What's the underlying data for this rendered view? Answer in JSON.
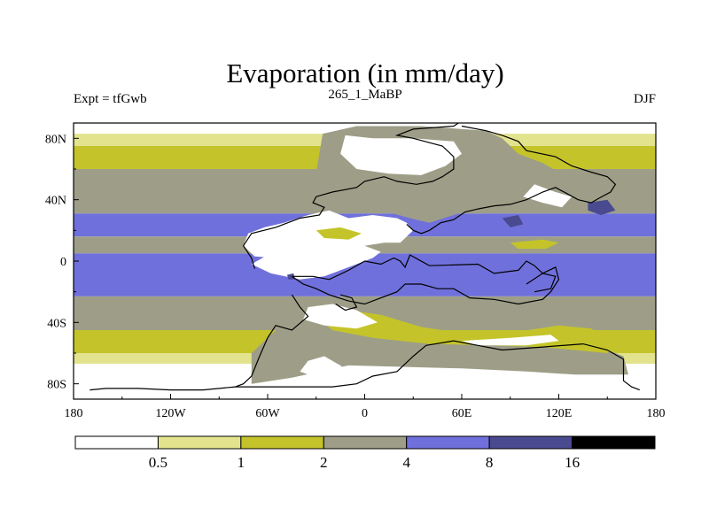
{
  "chart_data": {
    "type": "heatmap",
    "title": "Evaporation (in mm/day)",
    "subtitle_center": "265_1_MaBP",
    "subtitle_left": "Expt = tfGwb",
    "subtitle_right": "DJF",
    "x_ticks": [
      "180",
      "120W",
      "60W",
      "0",
      "60E",
      "120E",
      "180"
    ],
    "x_tick_values": [
      -180,
      -120,
      -60,
      0,
      60,
      120,
      180
    ],
    "y_ticks": [
      "80N",
      "40N",
      "0",
      "40S",
      "80S"
    ],
    "y_tick_values": [
      80,
      40,
      0,
      -40,
      -80
    ],
    "xlim": [
      -180,
      180
    ],
    "ylim": [
      -90,
      90
    ],
    "legend_levels": [
      "0.5",
      "1",
      "2",
      "4",
      "8",
      "16"
    ],
    "legend_level_values": [
      0.5,
      1,
      2,
      4,
      8,
      16
    ],
    "legend_colors": [
      "#ffffff",
      "#e3e38e",
      "#c4c42a",
      "#9e9e88",
      "#7070dc",
      "#4a4a90",
      "#000000"
    ],
    "bands": [
      {
        "lat_from": 90,
        "lat_to": 83,
        "class": 0
      },
      {
        "lat_from": 83,
        "lat_to": 75,
        "class": 1
      },
      {
        "lat_from": 75,
        "lat_to": 60,
        "class": 2
      },
      {
        "lat_from": 60,
        "lat_to": 31,
        "class": 3
      },
      {
        "lat_from": 31,
        "lat_to": 16,
        "class": 4
      },
      {
        "lat_from": 16,
        "lat_to": 5,
        "class": 3
      },
      {
        "lat_from": 5,
        "lat_to": -23,
        "class": 4
      },
      {
        "lat_from": -23,
        "lat_to": -45,
        "class": 3
      },
      {
        "lat_from": -45,
        "lat_to": -60,
        "class": 2
      },
      {
        "lat_from": -60,
        "lat_to": -67,
        "class": 1
      },
      {
        "lat_from": -67,
        "lat_to": -90,
        "class": 0
      }
    ],
    "regions": [
      {
        "class": 3,
        "points": [
          [
            -26,
            83
          ],
          [
            -5,
            88
          ],
          [
            35,
            88
          ],
          [
            75,
            85
          ],
          [
            85,
            80
          ],
          [
            95,
            70
          ],
          [
            110,
            64
          ],
          [
            120,
            58
          ],
          [
            108,
            48
          ],
          [
            85,
            42
          ],
          [
            70,
            36
          ],
          [
            58,
            31
          ],
          [
            40,
            25
          ],
          [
            28,
            28
          ],
          [
            0,
            36
          ],
          [
            -20,
            40
          ],
          [
            -30,
            58
          ]
        ]
      },
      {
        "class": 3,
        "points": [
          [
            -40,
            -38
          ],
          [
            -25,
            -35
          ],
          [
            -10,
            -40
          ],
          [
            15,
            -42
          ],
          [
            30,
            -50
          ],
          [
            70,
            -52
          ],
          [
            110,
            -48
          ],
          [
            135,
            -50
          ],
          [
            150,
            -58
          ],
          [
            160,
            -62
          ],
          [
            163,
            -74
          ],
          [
            130,
            -74
          ],
          [
            100,
            -72
          ],
          [
            60,
            -70
          ],
          [
            -10,
            -68
          ],
          [
            -45,
            -76
          ],
          [
            -70,
            -80
          ],
          [
            -70,
            -60
          ],
          [
            -55,
            -45
          ]
        ]
      },
      {
        "class": 2,
        "points": [
          [
            -30,
            -36
          ],
          [
            -10,
            -32
          ],
          [
            10,
            -35
          ],
          [
            35,
            -43
          ],
          [
            60,
            -47
          ],
          [
            95,
            -46
          ],
          [
            120,
            -42
          ],
          [
            140,
            -44
          ],
          [
            155,
            -55
          ],
          [
            150,
            -60
          ],
          [
            110,
            -56
          ],
          [
            80,
            -55
          ],
          [
            40,
            -54
          ],
          [
            5,
            -50
          ],
          [
            -20,
            -45
          ]
        ]
      },
      {
        "class": 0,
        "points": [
          [
            -12,
            82
          ],
          [
            5,
            80
          ],
          [
            30,
            80
          ],
          [
            55,
            78
          ],
          [
            60,
            70
          ],
          [
            50,
            62
          ],
          [
            35,
            56
          ],
          [
            15,
            57
          ],
          [
            -5,
            60
          ],
          [
            -15,
            70
          ]
        ]
      },
      {
        "class": 0,
        "points": [
          [
            -68,
            3
          ],
          [
            -75,
            10
          ],
          [
            -72,
            18
          ],
          [
            -62,
            22
          ],
          [
            -50,
            25
          ],
          [
            -35,
            30
          ],
          [
            -22,
            33
          ],
          [
            -10,
            28
          ],
          [
            5,
            30
          ],
          [
            20,
            28
          ],
          [
            26,
            25
          ],
          [
            30,
            20
          ],
          [
            22,
            12
          ],
          [
            12,
            12
          ],
          [
            0,
            10
          ],
          [
            -10,
            8
          ],
          [
            -25,
            5
          ],
          [
            -40,
            4
          ],
          [
            -55,
            2
          ]
        ]
      },
      {
        "class": 0,
        "points": [
          [
            -70,
            -2
          ],
          [
            -58,
            -8
          ],
          [
            -40,
            -12
          ],
          [
            -25,
            -10
          ],
          [
            -15,
            -6
          ],
          [
            -5,
            -2
          ],
          [
            5,
            2
          ],
          [
            10,
            6
          ],
          [
            0,
            10
          ],
          [
            -20,
            8
          ],
          [
            -40,
            6
          ],
          [
            -60,
            4
          ]
        ]
      },
      {
        "class": 0,
        "points": [
          [
            -35,
            -30
          ],
          [
            -20,
            -28
          ],
          [
            -5,
            -32
          ],
          [
            8,
            -40
          ],
          [
            -5,
            -44
          ],
          [
            -25,
            -42
          ],
          [
            -38,
            -38
          ]
        ]
      },
      {
        "class": 0,
        "points": [
          [
            60,
            -52
          ],
          [
            90,
            -50
          ],
          [
            115,
            -48
          ],
          [
            120,
            -52
          ],
          [
            100,
            -55
          ],
          [
            70,
            -55
          ]
        ]
      },
      {
        "class": 0,
        "points": [
          [
            -35,
            -65
          ],
          [
            -25,
            -62
          ],
          [
            -15,
            -68
          ],
          [
            -5,
            -78
          ],
          [
            -25,
            -78
          ],
          [
            -40,
            -72
          ]
        ]
      },
      {
        "class": 0,
        "points": [
          [
            105,
            50
          ],
          [
            118,
            45
          ],
          [
            128,
            42
          ],
          [
            122,
            35
          ],
          [
            110,
            38
          ],
          [
            98,
            42
          ]
        ]
      },
      {
        "class": 2,
        "points": [
          [
            -30,
            20
          ],
          [
            -15,
            22
          ],
          [
            -2,
            18
          ],
          [
            -10,
            14
          ],
          [
            -25,
            15
          ]
        ]
      },
      {
        "class": 2,
        "points": [
          [
            90,
            12
          ],
          [
            110,
            14
          ],
          [
            120,
            12
          ],
          [
            112,
            8
          ],
          [
            95,
            8
          ]
        ]
      },
      {
        "class": 5,
        "points": [
          [
            138,
            38
          ],
          [
            150,
            40
          ],
          [
            155,
            33
          ],
          [
            146,
            30
          ],
          [
            138,
            33
          ]
        ]
      },
      {
        "class": 5,
        "points": [
          [
            85,
            28
          ],
          [
            95,
            30
          ],
          [
            98,
            24
          ],
          [
            90,
            22
          ]
        ]
      },
      {
        "class": 5,
        "points": [
          [
            -48,
            -9
          ],
          [
            -44,
            -8
          ],
          [
            -43,
            -12
          ],
          [
            -47,
            -12
          ]
        ]
      }
    ],
    "coastlines": [
      [
        [
          -68,
          -5
        ],
        [
          -70,
          2
        ],
        [
          -75,
          10
        ],
        [
          -70,
          18
        ],
        [
          -55,
          22
        ],
        [
          -40,
          28
        ],
        [
          -28,
          30
        ],
        [
          -25,
          35
        ],
        [
          -32,
          38
        ],
        [
          -30,
          42
        ],
        [
          -20,
          45
        ],
        [
          -5,
          48
        ],
        [
          0,
          52
        ],
        [
          12,
          55
        ],
        [
          20,
          52
        ],
        [
          32,
          50
        ],
        [
          42,
          52
        ],
        [
          48,
          55
        ],
        [
          55,
          60
        ],
        [
          55,
          68
        ],
        [
          48,
          75
        ],
        [
          30,
          80
        ],
        [
          20,
          82
        ],
        [
          30,
          86
        ],
        [
          55,
          88
        ],
        [
          58,
          90
        ]
      ],
      [
        [
          26,
          24
        ],
        [
          30,
          20
        ],
        [
          35,
          18
        ],
        [
          40,
          20
        ],
        [
          47,
          25
        ],
        [
          55,
          27
        ],
        [
          62,
          32
        ],
        [
          70,
          34
        ],
        [
          80,
          36
        ],
        [
          90,
          37
        ],
        [
          100,
          40
        ],
        [
          110,
          45
        ],
        [
          118,
          48
        ],
        [
          125,
          44
        ],
        [
          132,
          40
        ],
        [
          140,
          38
        ],
        [
          145,
          41
        ],
        [
          152,
          45
        ],
        [
          155,
          50
        ],
        [
          150,
          55
        ],
        [
          140,
          58
        ],
        [
          128,
          62
        ],
        [
          118,
          68
        ],
        [
          100,
          72
        ],
        [
          95,
          78
        ],
        [
          85,
          82
        ],
        [
          75,
          85
        ],
        [
          60,
          88
        ]
      ],
      [
        [
          -45,
          -10
        ],
        [
          -32,
          -10
        ],
        [
          -22,
          -12
        ],
        [
          -10,
          -6
        ],
        [
          0,
          0
        ],
        [
          10,
          -2
        ],
        [
          18,
          2
        ],
        [
          22,
          0
        ],
        [
          25,
          -4
        ],
        [
          28,
          4
        ],
        [
          40,
          -3
        ],
        [
          70,
          -2
        ],
        [
          80,
          -8
        ],
        [
          95,
          -6
        ],
        [
          100,
          0
        ],
        [
          105,
          -3
        ],
        [
          110,
          -8
        ],
        [
          118,
          -4
        ],
        [
          120,
          -12
        ],
        [
          115,
          -20
        ],
        [
          110,
          -25
        ],
        [
          95,
          -28
        ],
        [
          80,
          -25
        ],
        [
          65,
          -24
        ],
        [
          55,
          -18
        ],
        [
          45,
          -18
        ],
        [
          35,
          -15
        ],
        [
          25,
          -15
        ],
        [
          20,
          -20
        ],
        [
          10,
          -24
        ],
        [
          0,
          -28
        ],
        [
          -10,
          -26
        ],
        [
          -22,
          -22
        ],
        [
          -30,
          -18
        ],
        [
          -38,
          -15
        ],
        [
          -45,
          -10
        ]
      ],
      [
        [
          -45,
          -22
        ],
        [
          -40,
          -30
        ],
        [
          -35,
          -36
        ],
        [
          -45,
          -45
        ],
        [
          -55,
          -42
        ],
        [
          -60,
          -50
        ],
        [
          -65,
          -62
        ],
        [
          -70,
          -75
        ],
        [
          -75,
          -80
        ],
        [
          -80,
          -82
        ],
        [
          -20,
          -82
        ],
        [
          -5,
          -80
        ],
        [
          5,
          -75
        ],
        [
          20,
          -72
        ],
        [
          30,
          -62
        ],
        [
          38,
          -55
        ],
        [
          55,
          -52
        ],
        [
          70,
          -55
        ],
        [
          85,
          -58
        ],
        [
          110,
          -56
        ],
        [
          135,
          -54
        ],
        [
          150,
          -58
        ],
        [
          160,
          -64
        ],
        [
          160,
          -78
        ],
        [
          165,
          -82
        ],
        [
          170,
          -84
        ]
      ],
      [
        [
          -15,
          -22
        ],
        [
          -8,
          -24
        ],
        [
          -5,
          -30
        ],
        [
          -12,
          -32
        ],
        [
          -18,
          -28
        ]
      ],
      [
        [
          100,
          -15
        ],
        [
          110,
          -8
        ],
        [
          118,
          -10
        ],
        [
          115,
          -18
        ],
        [
          105,
          -20
        ]
      ],
      [
        [
          -80,
          -82
        ],
        [
          -100,
          -84
        ],
        [
          -120,
          -84
        ],
        [
          -140,
          -83
        ],
        [
          -160,
          -83
        ],
        [
          -170,
          -84
        ]
      ]
    ]
  }
}
